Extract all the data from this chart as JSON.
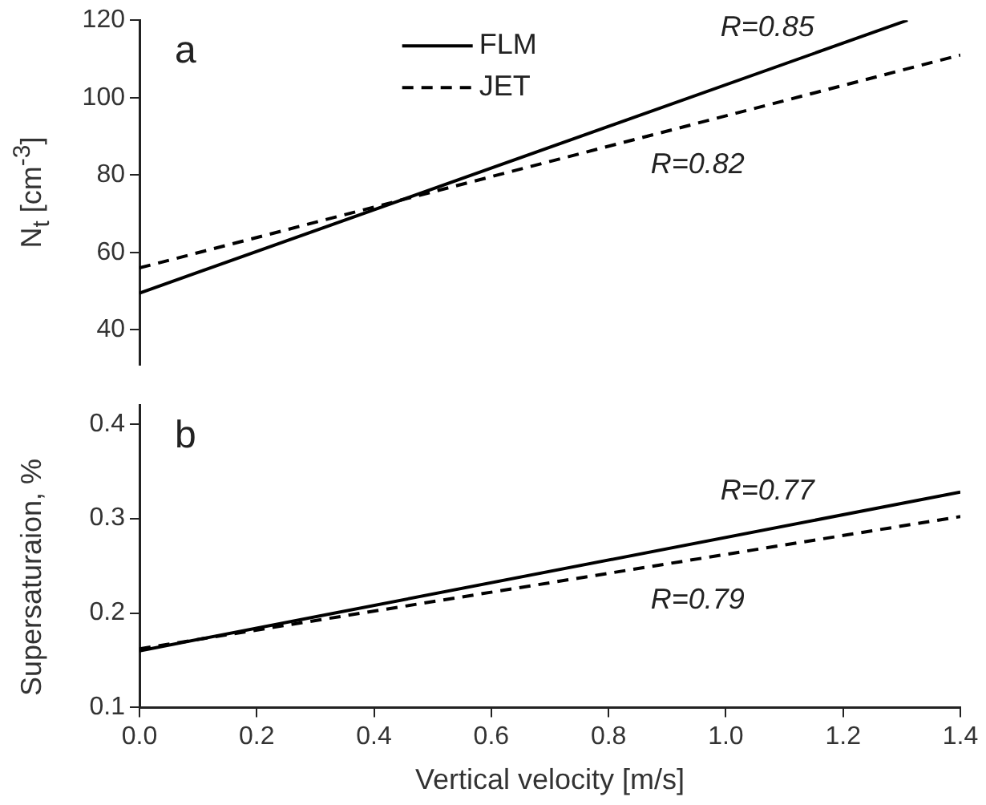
{
  "chart_data": [
    {
      "type": "line",
      "ylabel": "N$_{t}$ [cm$^{-3}$]",
      "xlim": [
        0,
        1.4
      ],
      "ylim": [
        31,
        120
      ],
      "yticks": [
        40,
        60,
        80,
        100,
        120
      ],
      "tick_labels": "y",
      "grid": false,
      "legend": "top",
      "series": [
        {
          "name": "FLM",
          "color": "#000000",
          "line_style": "solid",
          "x": [
            0,
            1.31
          ],
          "values": [
            49.5,
            120
          ]
        },
        {
          "name": "JET",
          "color": "#000000",
          "line_style": "dashed",
          "x": [
            0,
            1.4
          ],
          "values": [
            56,
            111
          ]
        }
      ],
      "annotations": [
        "a",
        "R=0.85",
        "R=0.82"
      ]
    },
    {
      "type": "line",
      "xlabel": "Vertical velocity [m/s]",
      "ylabel": "Supersaturaion, %",
      "xlim": [
        0,
        1.4
      ],
      "xticks": [
        {
          "value": 0,
          "label": "0.0"
        },
        0.2,
        0.4,
        0.6,
        0.8,
        {
          "value": 1,
          "label": "1.0"
        },
        1.2,
        1.4
      ],
      "ylim": [
        0.1,
        0.42
      ],
      "yticks": [
        0.1,
        0.2,
        0.3,
        0.4
      ],
      "grid": false,
      "series": [
        {
          "color": "#000000",
          "line_style": "solid",
          "x": [
            0,
            1.4
          ],
          "values": [
            0.16,
            0.328
          ]
        },
        {
          "color": "#000000",
          "line_style": "dashed",
          "x": [
            0,
            1.4
          ],
          "values": [
            0.162,
            0.302
          ]
        }
      ],
      "annotations": [
        "b",
        "R=0.77",
        "R=0.79"
      ]
    }
  ]
}
